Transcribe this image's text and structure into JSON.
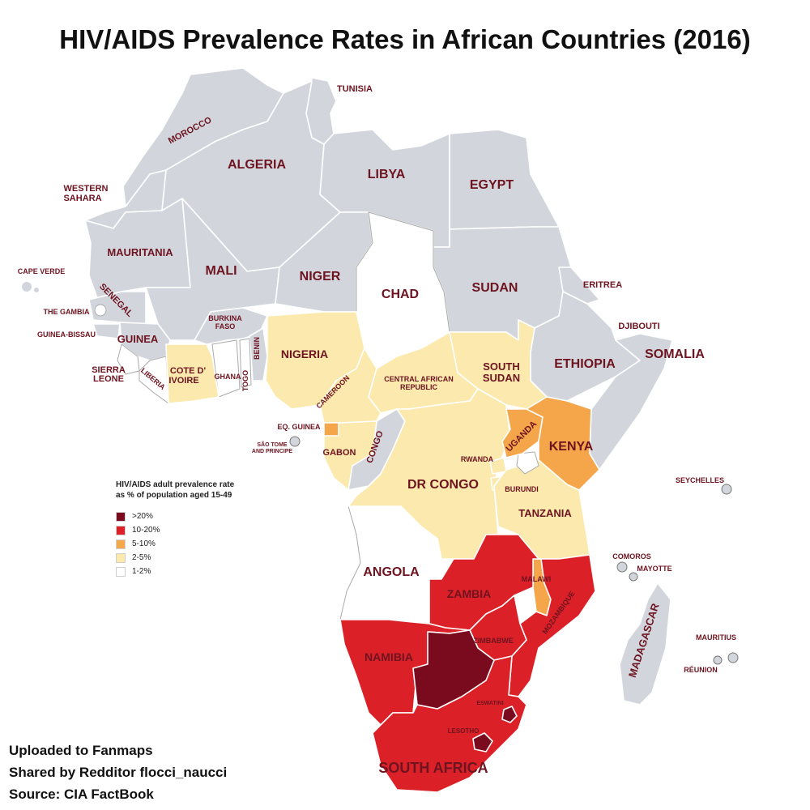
{
  "title": "HIV/AIDS Prevalence Rates in African Countries (2016)",
  "colors": {
    "no_data": "#d2d6dc",
    "over_20": "#7a0b1e",
    "10_20": "#dc2027",
    "5_10": "#f5a54a",
    "2_5": "#fbe9ad",
    "1_2": "#ffffff"
  },
  "legend": {
    "title_line1": "HIV/AIDS adult prevalence rate",
    "title_line2": "as % of population aged 15-49",
    "items": [
      {
        "label": ">20%",
        "color": "#7a0b1e"
      },
      {
        "label": "10-20%",
        "color": "#dc2027"
      },
      {
        "label": "5-10%",
        "color": "#f5a54a"
      },
      {
        "label": "2-5%",
        "color": "#fbe9ad"
      },
      {
        "label": "1-2%",
        "color": "#ffffff"
      }
    ]
  },
  "countries": {
    "tunisia": "TUNISIA",
    "morocco": "MOROCCO",
    "algeria": "ALGERIA",
    "libya": "LIBYA",
    "egypt": "EGYPT",
    "western_sahara_1": "WESTERN",
    "western_sahara_2": "SAHARA",
    "mauritania": "MAURITANIA",
    "mali": "MALI",
    "niger": "NIGER",
    "chad": "CHAD",
    "sudan": "SUDAN",
    "eritrea": "ERITREA",
    "djibouti": "DJIBOUTI",
    "somalia": "SOMALIA",
    "ethiopia": "ETHIOPIA",
    "south_sudan_1": "SOUTH",
    "south_sudan_2": "SUDAN",
    "car_1": "CENTRAL AFRICAN",
    "car_2": "REPUBLIC",
    "cape_verde": "CAPE VERDE",
    "senegal": "SENEGAL",
    "the_gambia": "THE GAMBIA",
    "guinea_bissau": "GUINEA-BISSAU",
    "guinea": "GUINEA",
    "sierra_leone_1": "SIERRA",
    "sierra_leone_2": "LEONE",
    "liberia": "LIBERIA",
    "cote_divoire_1": "COTE D'",
    "cote_divoire_2": "IVOIRE",
    "ghana": "GHANA",
    "togo": "TOGO",
    "benin": "BENIN",
    "burkina_faso_1": "BURKINA",
    "burkina_faso_2": "FASO",
    "nigeria": "NIGERIA",
    "cameroon": "CAMEROON",
    "eq_guinea": "EQ. GUINEA",
    "sao_tome_1": "SÃO TOME",
    "sao_tome_2": "AND PRINCIPE",
    "gabon": "GABON",
    "congo": "CONGO",
    "dr_congo": "DR CONGO",
    "uganda": "UGANDA",
    "kenya": "KENYA",
    "rwanda": "RWANDA",
    "burundi": "BURUNDI",
    "tanzania": "TANZANIA",
    "seychelles": "SEYCHELLES",
    "comoros": "COMOROS",
    "mayotte": "MAYOTTE",
    "angola": "ANGOLA",
    "zambia": "ZAMBIA",
    "malawi": "MALAWI",
    "mozambique": "MOZAMBIQUE",
    "zimbabwe": "ZIMBABWE",
    "namibia": "NAMIBIA",
    "madagascar": "MADAGASCAR",
    "mauritius": "MAURITIUS",
    "reunion": "RÉUNION",
    "eswatini": "ESWATINI",
    "lesotho": "LESOTHO",
    "south_africa": "SOUTH AFRICA"
  },
  "credits": {
    "line1": "Uploaded to Fanmaps",
    "line2": "Shared by Redditor flocci_naucci",
    "line3": "Source: CIA FactBook"
  }
}
